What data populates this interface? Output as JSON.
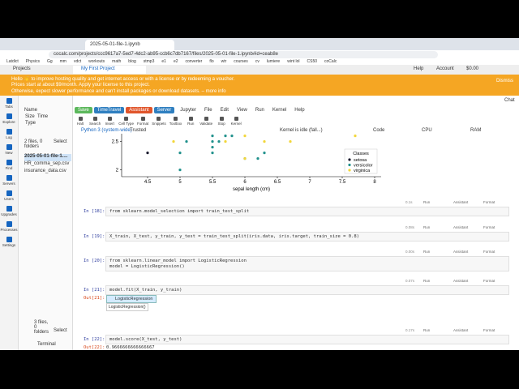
{
  "browser": {
    "tab_title": "2025-05-01-file-1.ipynb",
    "url": "cocalc.com/projects/ccc9617a7-5ed7-4dc2-ab95-ccb6c7db7167/files/2025-05-01-file-1.ipynb#id=ceab8e",
    "bookmarks": [
      "Latdict",
      "Physics",
      "Gg",
      "mm",
      "vdct",
      "workouts",
      "math",
      "blog",
      "stmp3",
      "e1",
      "e2",
      "converter",
      "flo",
      "wtr",
      "courses",
      "cv",
      "lumiere",
      "wint lol",
      "CS50",
      "coCalc"
    ]
  },
  "cocalc": {
    "projects": "Projects",
    "project_tab": "My First Project",
    "help": "Help",
    "account": "Account",
    "balance": "$0.00"
  },
  "banner": {
    "hello": "Hello 👋 to improve hosting quality and get internet access or with a license or by redeeming a voucher.",
    "prices": "Prices start at about $9/month. Apply your license to this project.",
    "otherwise": "Otherwise, expect slower performance and can't install packages or download datasets. – more info",
    "dismiss": "Dismiss"
  },
  "toolbar": {
    "chat": "Chat",
    "buttons": [
      "Save",
      "TimeTravel",
      "Assistant",
      "Server"
    ],
    "menus": [
      "Jupyter",
      "File",
      "Edit",
      "View",
      "Run",
      "Kernel",
      "Help"
    ],
    "icons": [
      "Halt",
      "Search",
      "Insert",
      "Cell Type",
      "Format",
      "Snippets",
      "Toolbox",
      "Run",
      "Validate",
      "Stop",
      "Kernel"
    ],
    "kernel_name": "Python 3 (system-wide)",
    "trusted": "Trusted",
    "kernel_state": "Kernel is idle (fall...)",
    "code": "Code",
    "cpu": "CPU",
    "ram": "RAM"
  },
  "sidebar": [
    "Tabs",
    "Explore",
    "Log",
    "New",
    "Find",
    "Servers",
    "Users",
    "Upgrades",
    "Processes",
    "Settings"
  ],
  "files": {
    "name": "Name",
    "size": "Size",
    "time": "Time",
    "type": "Type",
    "count": "2 files, 0 folders",
    "select": "Select",
    "items": [
      "2025-05-01-file-1....",
      "HR_comma_sep.csv",
      "insurance_data.csv"
    ],
    "count2": "3 files, 0 folders",
    "select2": "Select",
    "terminal": "Terminal"
  },
  "plot": {
    "xlabel": "sepal length (cm)",
    "xlim": [
      4.1,
      8.1
    ],
    "ylim": [
      1.88,
      2.7
    ],
    "xticks": [
      4.5,
      5.0,
      5.5,
      6.0,
      6.5,
      7.0,
      7.5,
      8.0
    ],
    "yticks": [
      2.0,
      2.5
    ],
    "legend_title": "Classes",
    "series": [
      {
        "name": "setosa",
        "color": "#1a1a2e",
        "x": [
          4.5
        ],
        "y": [
          2.3
        ]
      },
      {
        "name": "versicolor",
        "color": "#21918c",
        "x": [
          5.0,
          5.0,
          5.5,
          6.0,
          6.2,
          6.3,
          5.5,
          5.5,
          5.1,
          5.6,
          5.7,
          5.8,
          5.5
        ],
        "y": [
          2.0,
          2.3,
          2.3,
          2.2,
          2.2,
          2.3,
          2.4,
          2.5,
          2.5,
          2.5,
          2.6,
          2.6,
          2.6
        ]
      },
      {
        "name": "virginica",
        "color": "#f2d63a",
        "x": [
          4.9,
          6.0,
          6.3,
          5.7,
          6.7,
          7.7,
          6.0
        ],
        "y": [
          2.5,
          2.2,
          2.5,
          2.5,
          2.5,
          2.6,
          2.6
        ]
      }
    ]
  },
  "cell_actions": [
    "Run",
    "Assistant",
    "Format"
  ],
  "cells": [
    {
      "prompt": "In [18]:",
      "time": "0.1s",
      "code": [
        "from sklearn.model_selection import train_test_split"
      ]
    },
    {
      "prompt": "In [19]:",
      "time": "0.08s",
      "code": [
        "X_train, X_test, y_train, y_test = train_test_split(iris.data, iris.target, train_size = 0.8)"
      ]
    },
    {
      "prompt": "In [20]:",
      "time": "0.00s",
      "code": [
        "from sklearn.linear_model import LogisticRegression",
        "model = LogisticRegression()"
      ]
    },
    {
      "prompt": "In [21]:",
      "time": "0.07s",
      "code": [
        "model.fit(X_train, y_train)"
      ],
      "out_prompt": "Out[21]:",
      "widget": "LogisticRegression",
      "output": "LogisticRegression()"
    },
    {
      "prompt": "In [22]:",
      "time": "0.17s",
      "code": [
        "model.score(X_test, y_test)"
      ],
      "out_prompt": "Out[22]:",
      "output": "0.9666666666666667"
    }
  ]
}
